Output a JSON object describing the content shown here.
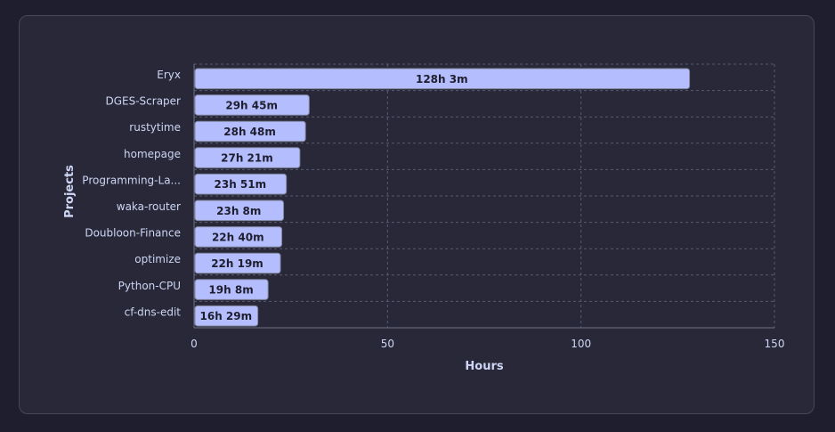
{
  "chart_data": {
    "type": "bar",
    "orientation": "horizontal",
    "categories": [
      "Eryx",
      "DGES-Scraper",
      "rustytime",
      "homepage",
      "Programming-La...",
      "waka-router",
      "Doubloon-Finance",
      "optimize",
      "Python-CPU",
      "cf-dns-edit"
    ],
    "values": [
      128.05,
      29.75,
      28.8,
      27.35,
      23.85,
      23.13,
      22.67,
      22.32,
      19.13,
      16.48
    ],
    "value_labels": [
      "128h 3m",
      "29h 45m",
      "28h 48m",
      "27h 21m",
      "23h 51m",
      "23h 8m",
      "22h 40m",
      "22h 19m",
      "19h 8m",
      "16h 29m"
    ],
    "xlabel": "Hours",
    "ylabel": "Projects",
    "xlim": [
      0,
      150
    ],
    "xticks": [
      "0",
      "50",
      "100",
      "150"
    ],
    "grid": true,
    "colors": {
      "bar_fill": "#b4befe",
      "bar_stroke": "#7f849c",
      "grid": "#585b70",
      "text": "#cdd6f4",
      "bar_text": "#1e1e2e"
    }
  }
}
